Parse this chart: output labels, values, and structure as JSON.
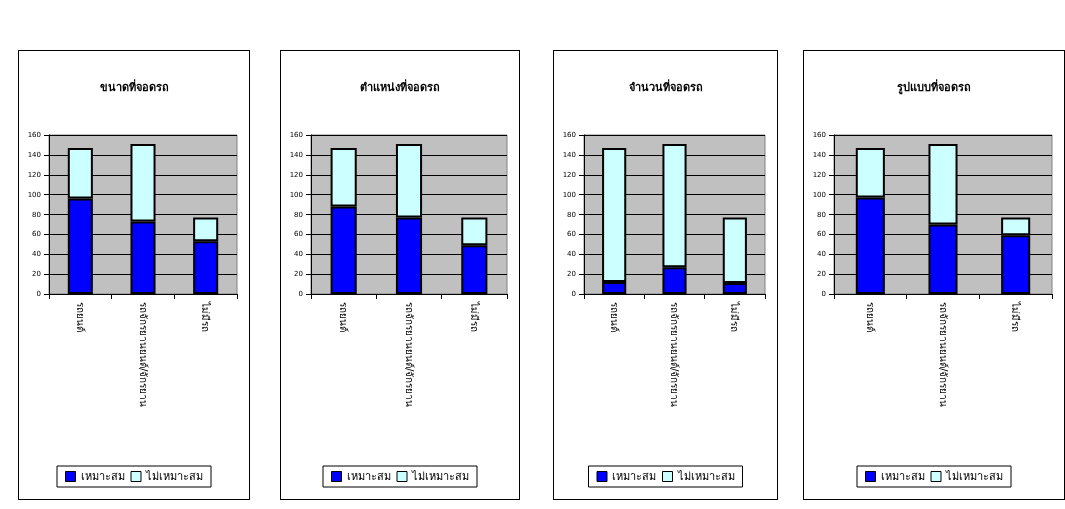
{
  "chart_data": [
    {
      "type": "bar",
      "title": "ขนาดที่จอดรถ",
      "categories": [
        "รถยนต์",
        "รถจักรยานยนต์/จักรยาน",
        "ไม่มีรถ"
      ],
      "stacked": true,
      "ylim": [
        0,
        160
      ],
      "yticks": [
        0,
        20,
        40,
        60,
        80,
        100,
        120,
        140,
        160
      ],
      "grid": "y",
      "legend": "bottom",
      "series": [
        {
          "name": "เหมาะสม",
          "color": "#0000ff",
          "values": [
            96,
            73,
            53
          ]
        },
        {
          "name": "ไม่เหมาะสม",
          "color": "#ccffff",
          "values": [
            51,
            78,
            24
          ]
        }
      ]
    },
    {
      "type": "bar",
      "title": "ตำแหน่งที่จอดรถ",
      "categories": [
        "รถยนต์",
        "รถจักรยานยนต์/จักรยาน",
        "ไม่มีรถ"
      ],
      "stacked": true,
      "ylim": [
        0,
        160
      ],
      "yticks": [
        0,
        20,
        40,
        60,
        80,
        100,
        120,
        140,
        160
      ],
      "grid": "y",
      "legend": "bottom",
      "series": [
        {
          "name": "เหมาะสม",
          "color": "#0000ff",
          "values": [
            88,
            77,
            49
          ]
        },
        {
          "name": "ไม่เหมาะสม",
          "color": "#ccffff",
          "values": [
            59,
            74,
            28
          ]
        }
      ]
    },
    {
      "type": "bar",
      "title": "จำนวนที่จอดรถ",
      "categories": [
        "รถยนต์",
        "รถจักรยานยนต์/จักรยาน",
        "ไม่มีรถ"
      ],
      "stacked": true,
      "ylim": [
        0,
        160
      ],
      "yticks": [
        0,
        20,
        40,
        60,
        80,
        100,
        120,
        140,
        160
      ],
      "grid": "y",
      "legend": "bottom",
      "series": [
        {
          "name": "เหมาะสม",
          "color": "#0000ff",
          "values": [
            12,
            27,
            11
          ]
        },
        {
          "name": "ไม่เหมาะสม",
          "color": "#ccffff",
          "values": [
            135,
            124,
            66
          ]
        }
      ]
    },
    {
      "type": "bar",
      "title": "รูปแบบที่จอดรถ",
      "categories": [
        "รถยนต์",
        "รถจักรยานยนต์/จักรยาน",
        "ไม่มีรถ"
      ],
      "stacked": true,
      "ylim": [
        0,
        160
      ],
      "yticks": [
        0,
        20,
        40,
        60,
        80,
        100,
        120,
        140,
        160
      ],
      "grid": "y",
      "legend": "bottom",
      "series": [
        {
          "name": "เหมาะสม",
          "color": "#0000ff",
          "values": [
            97,
            70,
            59
          ]
        },
        {
          "name": "ไม่เหมาะสม",
          "color": "#ccffff",
          "values": [
            50,
            81,
            18
          ]
        }
      ]
    }
  ]
}
